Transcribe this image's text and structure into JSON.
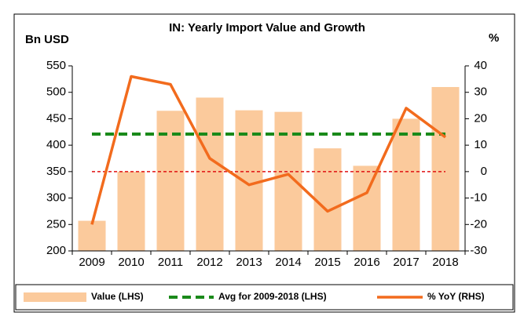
{
  "chart_data": {
    "type": "bar_line_combo",
    "title": "IN: Yearly Import Value and Growth",
    "y_label": "Bn USD",
    "y2_label": "%",
    "categories": [
      "2009",
      "2010",
      "2011",
      "2012",
      "2013",
      "2014",
      "2015",
      "2016",
      "2017",
      "2018"
    ],
    "series": [
      {
        "name": "Value (LHS)",
        "type": "bar",
        "color": "#fbca9c",
        "values": [
          257,
          350,
          465,
          490,
          466,
          463,
          394,
          361,
          450,
          510
        ]
      },
      {
        "name": "% YoY (RHS)",
        "type": "line",
        "axis": "y2",
        "color": "#f26b1d",
        "values": [
          -20,
          36,
          33,
          5,
          -5,
          -1,
          -15,
          -8,
          24,
          13
        ]
      }
    ],
    "average": {
      "name": "Avg for 2009-2018 (LHS)",
      "value": 421,
      "color": "#1a8a1a"
    },
    "reference_line": {
      "value": 0,
      "axis": "y2",
      "color": "#e01010"
    },
    "ylim": [
      200,
      550
    ],
    "yticks": [
      200,
      250,
      300,
      350,
      400,
      450,
      500,
      550
    ],
    "y2lim": [
      -30,
      40
    ],
    "y2ticks": [
      -30,
      -20,
      -10,
      0,
      10,
      20,
      30,
      40
    ]
  }
}
